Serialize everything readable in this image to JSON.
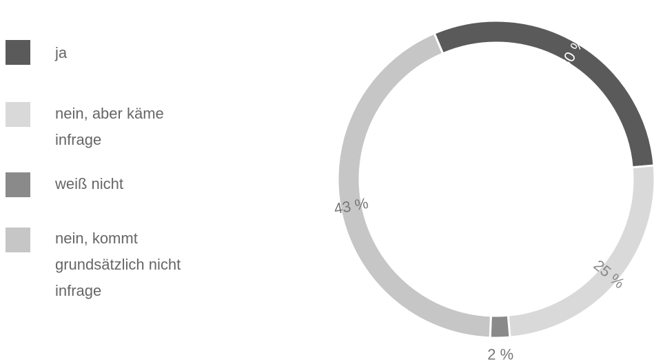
{
  "chart_data": {
    "type": "pie",
    "categories": [
      "ja",
      "nein, aber käme infrage",
      "weiß nicht",
      "nein, kommt grundsätzlich nicht infrage"
    ],
    "values": [
      30,
      25,
      2,
      43
    ],
    "data_labels": [
      "30 %",
      "25 %",
      "2 %",
      "43 %"
    ],
    "colors": [
      "#5a5a5a",
      "#d9d9d9",
      "#8a8a8a",
      "#c6c6c6"
    ],
    "title": "",
    "legend": "left"
  },
  "legend": {
    "items": [
      {
        "label": "ja",
        "color": "#5a5a5a"
      },
      {
        "label": "nein, aber käme infrage",
        "color": "#d9d9d9"
      },
      {
        "label": "weiß nicht",
        "color": "#8a8a8a"
      },
      {
        "label": "nein, kommt grundsätzlich nicht infrage",
        "color": "#c6c6c6"
      }
    ]
  }
}
